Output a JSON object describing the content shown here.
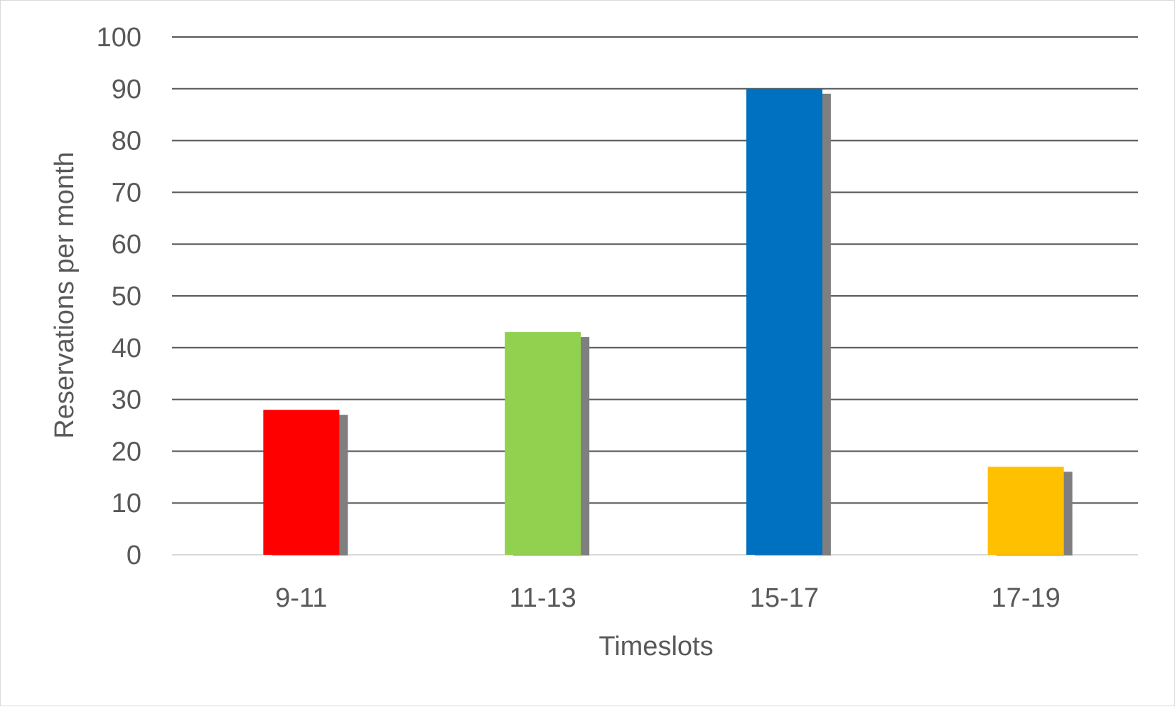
{
  "chart_data": {
    "type": "bar",
    "title": "",
    "xlabel": "Timeslots",
    "ylabel": "Reservations per month",
    "categories": [
      "9-11",
      "11-13",
      "15-17",
      "17-19"
    ],
    "values": [
      28,
      43,
      90,
      17
    ],
    "bar_colors": [
      "#ff0000",
      "#92d050",
      "#0070c0",
      "#ffc000"
    ],
    "shadow_color": "#7f7f7f",
    "gridline_color": "#595959",
    "ylim": [
      0,
      100
    ],
    "yticks": [
      "0",
      "10",
      "20",
      "30",
      "40",
      "50",
      "60",
      "70",
      "80",
      "90",
      "100"
    ],
    "grid": true,
    "legend": "none"
  }
}
